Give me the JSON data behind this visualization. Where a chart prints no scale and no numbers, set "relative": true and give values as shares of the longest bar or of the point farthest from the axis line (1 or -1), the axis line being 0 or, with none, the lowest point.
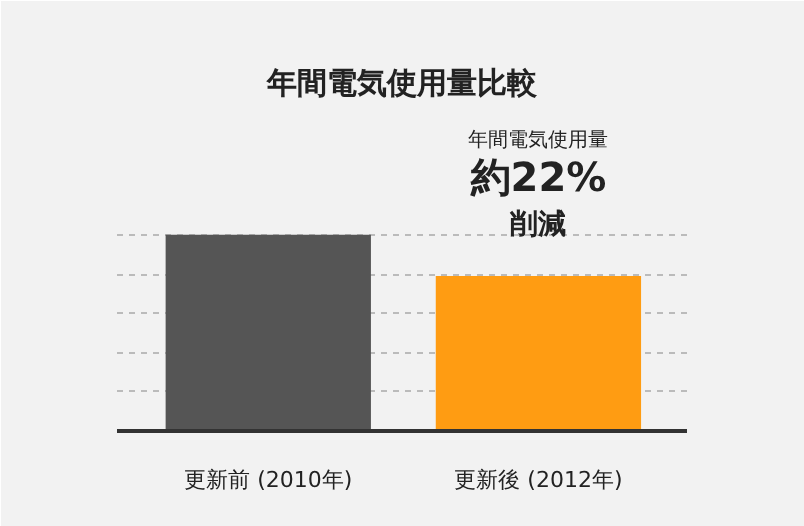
{
  "chart_data": {
    "type": "bar",
    "title": "年間電気使用量比較",
    "relative": true,
    "categories": [
      "更新前 (2010年)",
      "更新後 (2012年)"
    ],
    "values": [
      1,
      0.79
    ],
    "colors": [
      "#555555",
      "#ff9c12"
    ],
    "grid": "y",
    "annotations": [
      "年間電気使用量",
      "約22%",
      "削減"
    ]
  }
}
